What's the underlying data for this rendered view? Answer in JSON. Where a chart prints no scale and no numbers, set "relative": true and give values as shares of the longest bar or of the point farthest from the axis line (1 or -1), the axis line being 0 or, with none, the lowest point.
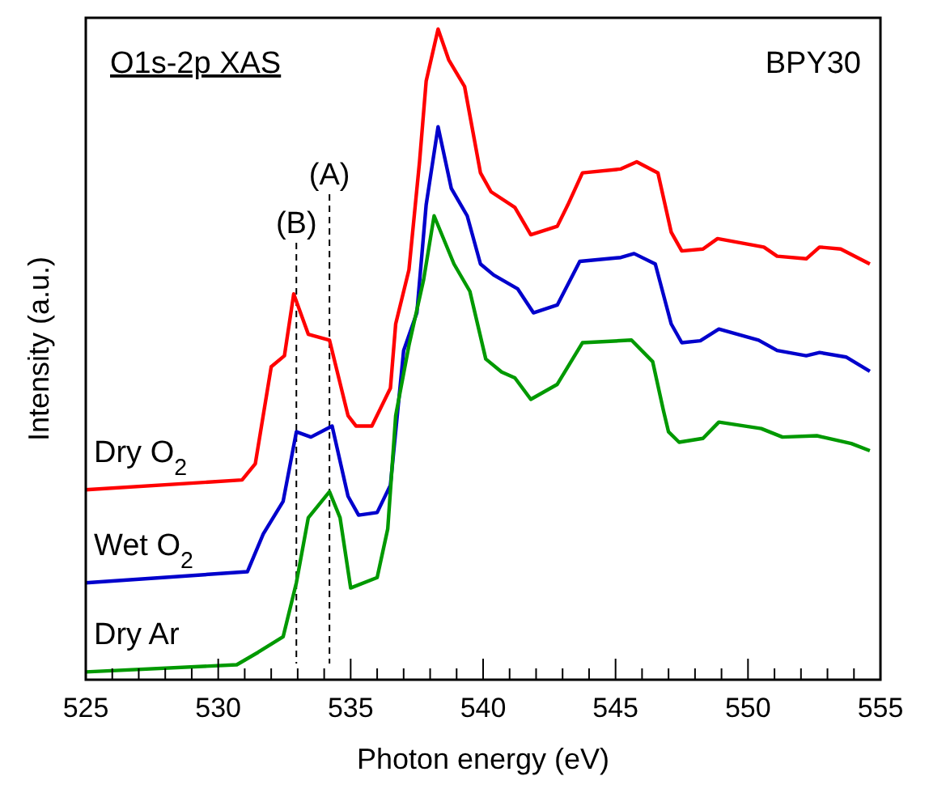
{
  "chart_data": {
    "type": "line",
    "title": "O1s-2p XAS",
    "xlabel": "Photon energy (eV)",
    "ylabel": "Intensity (a.u.)",
    "annotations": [
      "BPY30"
    ],
    "relative": true,
    "grid": false,
    "marker": "none",
    "line_style": "solid",
    "xlim": [
      525,
      555
    ],
    "xticks": [
      525,
      {
        "value": 526,
        "label": null
      },
      {
        "value": 527,
        "label": null
      },
      {
        "value": 528,
        "label": null
      },
      {
        "value": 529,
        "label": null
      },
      530,
      {
        "value": 531,
        "label": null
      },
      {
        "value": 532,
        "label": null
      },
      {
        "value": 533,
        "label": null
      },
      {
        "value": 534,
        "label": null
      },
      535,
      {
        "value": 536,
        "label": null
      },
      {
        "value": 537,
        "label": null
      },
      {
        "value": 538,
        "label": null
      },
      {
        "value": 539,
        "label": null
      },
      540,
      {
        "value": 541,
        "label": null
      },
      {
        "value": 542,
        "label": null
      },
      {
        "value": 543,
        "label": null
      },
      {
        "value": 544,
        "label": null
      },
      545,
      {
        "value": 546,
        "label": null
      },
      {
        "value": 547,
        "label": null
      },
      {
        "value": 548,
        "label": null
      },
      {
        "value": 549,
        "label": null
      },
      550,
      {
        "value": 551,
        "label": null
      },
      {
        "value": 552,
        "label": null
      },
      {
        "value": 553,
        "label": null
      },
      {
        "value": 554,
        "label": null
      },
      555
    ],
    "ref_lines": [
      {
        "axis": "x",
        "value": 534.2,
        "label": "(A)",
        "line_style": "dashed",
        "color": "#000000"
      },
      {
        "axis": "x",
        "value": 532.95,
        "label": "(B)",
        "line_style": "dashed",
        "color": "#000000"
      }
    ],
    "series": [
      {
        "name": "Dry O$_{2}$",
        "color": "#ff0000",
        "x": [
          525,
          530.9,
          531.4,
          532.0,
          532.5,
          532.85,
          533.4,
          534.2,
          534.9,
          535.2,
          535.8,
          536.5,
          536.7,
          537.2,
          537.6,
          537.85,
          538.3,
          538.7,
          539.3,
          539.9,
          540.3,
          541.2,
          541.8,
          542.8,
          543.2,
          543.75,
          545.2,
          545.8,
          546.6,
          547.1,
          547.5,
          548.3,
          548.85,
          550.6,
          551.1,
          552.2,
          552.7,
          553.5,
          554.6
        ],
        "values": [
          0.292,
          0.307,
          0.332,
          0.481,
          0.498,
          0.593,
          0.531,
          0.522,
          0.406,
          0.39,
          0.39,
          0.448,
          0.547,
          0.63,
          0.796,
          0.92,
          1.0,
          0.953,
          0.912,
          0.779,
          0.75,
          0.726,
          0.684,
          0.697,
          0.73,
          0.779,
          0.785,
          0.796,
          0.779,
          0.688,
          0.659,
          0.662,
          0.678,
          0.665,
          0.651,
          0.647,
          0.665,
          0.662,
          0.639
        ]
      },
      {
        "name": "Wet O$_{2}$",
        "color": "#0000cc",
        "x": [
          525,
          531.1,
          531.7,
          532.45,
          532.95,
          533.5,
          534.3,
          534.9,
          535.3,
          536.0,
          536.5,
          537.0,
          537.5,
          537.85,
          538.3,
          538.8,
          539.4,
          539.9,
          540.4,
          541.3,
          541.9,
          542.8,
          543.65,
          545.2,
          545.7,
          546.5,
          547.1,
          547.5,
          548.2,
          548.9,
          550.4,
          551.1,
          552.2,
          552.7,
          553.7,
          554.6
        ],
        "values": [
          0.149,
          0.166,
          0.224,
          0.274,
          0.381,
          0.373,
          0.39,
          0.282,
          0.253,
          0.257,
          0.299,
          0.506,
          0.564,
          0.73,
          0.85,
          0.755,
          0.713,
          0.639,
          0.622,
          0.601,
          0.564,
          0.576,
          0.643,
          0.649,
          0.655,
          0.639,
          0.547,
          0.518,
          0.521,
          0.539,
          0.522,
          0.506,
          0.498,
          0.503,
          0.496,
          0.474
        ]
      },
      {
        "name": "Dry Ar",
        "color": "#009900",
        "x": [
          525,
          530.7,
          531.5,
          532.45,
          532.95,
          533.4,
          534.2,
          534.6,
          535.0,
          536.0,
          536.4,
          536.7,
          537.2,
          537.75,
          538.15,
          538.9,
          539.5,
          540.1,
          540.7,
          541.2,
          541.8,
          542.8,
          543.75,
          545.6,
          546.4,
          546.8,
          547.0,
          547.4,
          548.3,
          548.9,
          550.5,
          551.3,
          552.6,
          553.9,
          554.6
        ],
        "values": [
          0.012,
          0.023,
          0.042,
          0.066,
          0.149,
          0.249,
          0.289,
          0.249,
          0.141,
          0.157,
          0.232,
          0.406,
          0.514,
          0.614,
          0.713,
          0.639,
          0.597,
          0.493,
          0.473,
          0.464,
          0.431,
          0.454,
          0.518,
          0.522,
          0.489,
          0.415,
          0.381,
          0.365,
          0.371,
          0.396,
          0.386,
          0.373,
          0.375,
          0.363,
          0.352
        ]
      }
    ]
  }
}
